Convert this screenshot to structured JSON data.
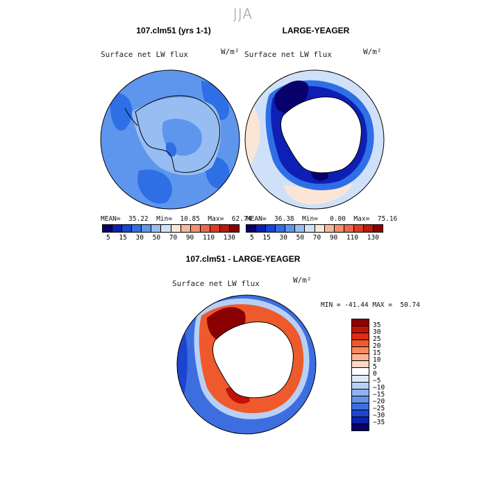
{
  "season": "JJA",
  "panels": {
    "left": {
      "title": "107.clm51 (yrs 1-1)",
      "variable": "Surface net LW flux",
      "units": "W/m²",
      "stats": "MEAN=  35.22  Min=  10.85  Max=  62.74"
    },
    "right": {
      "title": "LARGE-YEAGER",
      "variable": "Surface net LW flux",
      "units": "W/m²",
      "stats": "MEAN=  36.38  Min=   0.00  Max=  75.16"
    },
    "diff": {
      "title": "107.clm51 - LARGE-YEAGER",
      "variable": "Surface net LW flux",
      "units": "W/m²",
      "stats": "MIN = -41.44 MAX =  50.74"
    }
  },
  "top_colorbar": {
    "colors": [
      "#08006b",
      "#0e1fb5",
      "#1446d8",
      "#2e6fe6",
      "#5e96ee",
      "#97bdf3",
      "#cfe1f9",
      "#fbe6d6",
      "#f7b79a",
      "#f28f6d",
      "#ec6845",
      "#dd3b1f",
      "#bb1a0c",
      "#8b0000"
    ],
    "labels": [
      "5",
      "15",
      "30",
      "50",
      "70",
      "90",
      "110",
      "130"
    ]
  },
  "diff_colorbar": {
    "colors": [
      "#8b0000",
      "#c1130a",
      "#dc2e12",
      "#ee5a2c",
      "#f58a5f",
      "#f9b395",
      "#fcd9c6",
      "#ffffff",
      "#dde9fa",
      "#b8d0f6",
      "#8fb3f1",
      "#6593ea",
      "#3d6ee0",
      "#1c45cf",
      "#0d22ad",
      "#07006b"
    ],
    "labels": [
      "35",
      "30",
      "25",
      "20",
      "15",
      "10",
      "5",
      "0",
      "−5",
      "−10",
      "−15",
      "−20",
      "−25",
      "−30",
      "−35"
    ]
  }
}
